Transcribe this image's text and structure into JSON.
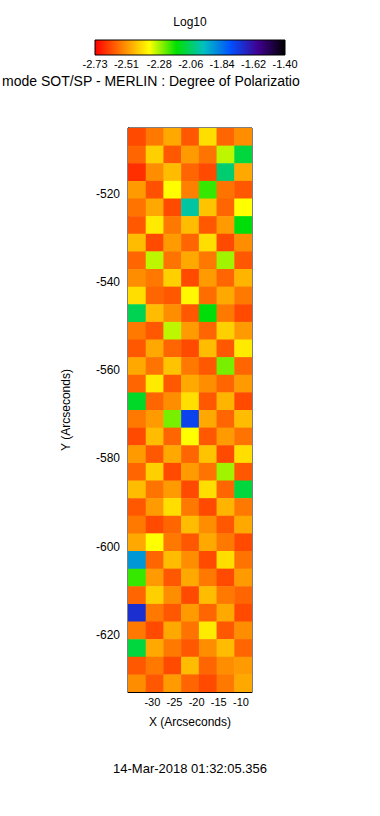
{
  "chart_data": {
    "type": "heatmap",
    "title": "mode SOT/SP - MERLIN : Degree of Polarizatio",
    "annotation": "14-Mar-2018 01:32:05.356",
    "x_label": "X (Arcseconds)",
    "y_label": "Y (Arcseconds)",
    "xlim": [
      -35.5,
      -7.5
    ],
    "xticks": [
      -30,
      -25,
      -20,
      -15,
      -10
    ],
    "ylim": [
      -633,
      -505
    ],
    "yticks": [
      -520,
      -540,
      -560,
      -580,
      -600,
      -620
    ],
    "colorbar": {
      "label": "Log10",
      "range": [
        -2.73,
        -1.4
      ],
      "ticks": [
        -2.73,
        -2.51,
        -2.28,
        -2.06,
        -1.84,
        -1.62,
        {
          "value": -1.4,
          "label": "-1.40"
        }
      ]
    },
    "cells": {
      "x": [
        -33.5,
        -29.5,
        -25.5,
        -21.5,
        -17.5,
        -13.5,
        -9.5
      ],
      "y": [
        -507,
        -511,
        -515,
        -519,
        -523,
        -527,
        -531,
        -535,
        -539,
        -543,
        -547,
        -551,
        -555,
        -559,
        -563,
        -567,
        -571,
        -575,
        -579,
        -583,
        -587,
        -591,
        -595,
        -599,
        -603,
        -607,
        -611,
        -615,
        -619,
        -623,
        -627,
        -631
      ],
      "values": [
        [
          -2.62,
          -2.55,
          -2.48,
          -2.6,
          -2.4,
          -2.58,
          -2.52
        ],
        [
          -2.58,
          -2.42,
          -2.6,
          -2.5,
          -2.56,
          -2.3,
          -2.1
        ],
        [
          -2.66,
          -2.52,
          -2.45,
          -2.58,
          -2.62,
          -2.05,
          -2.48
        ],
        [
          -2.5,
          -2.61,
          -2.35,
          -2.54,
          -2.2,
          -2.56,
          -2.6
        ],
        [
          -2.56,
          -2.48,
          -2.62,
          -2.0,
          -2.44,
          -2.58,
          -2.35
        ],
        [
          -2.6,
          -2.38,
          -2.55,
          -2.45,
          -2.6,
          -2.5,
          -2.15
        ],
        [
          -2.45,
          -2.62,
          -2.5,
          -2.58,
          -2.4,
          -2.62,
          -2.52
        ],
        [
          -2.58,
          -2.3,
          -2.56,
          -2.48,
          -2.55,
          -2.28,
          -2.6
        ],
        [
          -2.52,
          -2.55,
          -2.42,
          -2.62,
          -2.5,
          -2.58,
          -2.46
        ],
        [
          -2.4,
          -2.58,
          -2.6,
          -2.36,
          -2.57,
          -2.48,
          -2.55
        ],
        [
          -2.08,
          -2.45,
          -2.52,
          -2.6,
          -2.15,
          -2.55,
          -2.62
        ],
        [
          -2.55,
          -2.6,
          -2.3,
          -2.5,
          -2.58,
          -2.42,
          -2.5
        ],
        [
          -2.6,
          -2.48,
          -2.58,
          -2.62,
          -2.45,
          -2.6,
          -2.38
        ],
        [
          -2.48,
          -2.56,
          -2.44,
          -2.55,
          -2.6,
          -2.25,
          -2.58
        ],
        [
          -2.58,
          -2.38,
          -2.6,
          -2.48,
          -2.52,
          -2.58,
          -2.5
        ],
        [
          -2.12,
          -2.58,
          -2.52,
          -2.4,
          -2.6,
          -2.46,
          -2.62
        ],
        [
          -2.55,
          -2.5,
          -2.25,
          -1.75,
          -2.48,
          -2.58,
          -2.45
        ],
        [
          -2.62,
          -2.45,
          -2.58,
          -2.35,
          -2.6,
          -2.5,
          -2.56
        ],
        [
          -2.5,
          -2.6,
          -2.48,
          -2.58,
          -2.44,
          -2.62,
          -2.4
        ],
        [
          -2.58,
          -2.42,
          -2.62,
          -2.5,
          -2.56,
          -2.28,
          -2.6
        ],
        [
          -2.45,
          -2.56,
          -2.5,
          -2.62,
          -2.4,
          -2.58,
          -2.1
        ],
        [
          -2.6,
          -2.5,
          -2.4,
          -2.55,
          -2.62,
          -2.46,
          -2.55
        ],
        [
          -2.55,
          -2.62,
          -2.58,
          -2.45,
          -2.52,
          -2.6,
          -2.48
        ],
        [
          -2.48,
          -2.35,
          -2.55,
          -2.6,
          -2.48,
          -2.55,
          -2.62
        ],
        [
          -1.9,
          -2.58,
          -2.45,
          -2.52,
          -2.62,
          -2.4,
          -2.56
        ],
        [
          -2.2,
          -2.5,
          -2.6,
          -2.48,
          -2.55,
          -2.62,
          -2.5
        ],
        [
          -2.58,
          -2.42,
          -2.52,
          -2.62,
          -2.45,
          -2.55,
          -2.58
        ],
        [
          -1.7,
          -2.55,
          -2.6,
          -2.5,
          -2.58,
          -2.48,
          -2.62
        ],
        [
          -2.55,
          -2.62,
          -2.48,
          -2.56,
          -2.38,
          -2.6,
          -2.52
        ],
        [
          -2.1,
          -2.48,
          -2.55,
          -2.6,
          -2.52,
          -2.45,
          -2.58
        ],
        [
          -2.6,
          -2.55,
          -2.62,
          -2.45,
          -2.58,
          -2.52,
          -2.5
        ],
        [
          -2.52,
          -2.6,
          -2.5,
          -2.58,
          -2.62,
          -2.55,
          -2.48
        ]
      ]
    }
  }
}
